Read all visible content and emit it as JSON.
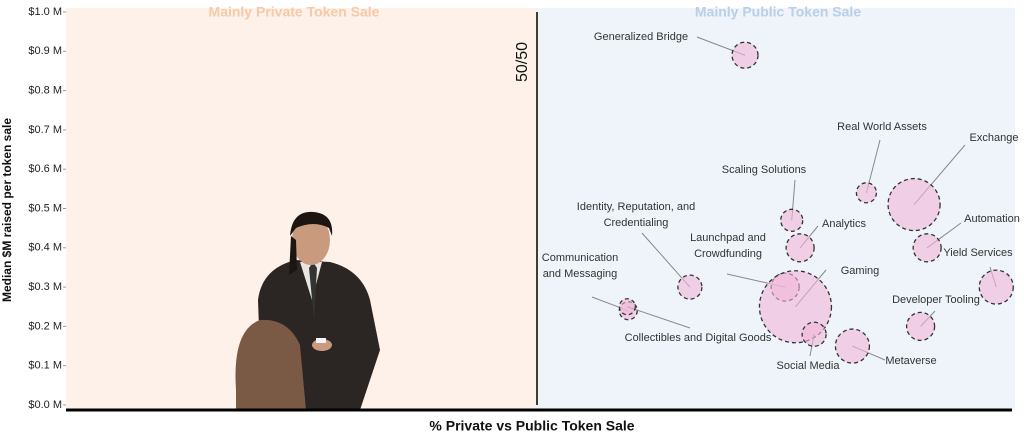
{
  "chart_data": {
    "type": "bubble",
    "region_labels": [
      "Mainly Private Token Sale",
      "Mainly Public Token Sale"
    ],
    "divider_label": "50/50",
    "xlabel": "% Private vs Public Token Sale",
    "ylabel": "Median $M raised per token sale",
    "xlim": [
      0,
      100
    ],
    "divider_x": 50,
    "ylim": [
      0,
      1
    ],
    "yticks": [
      {
        "value": 0,
        "label": "$0.0 M"
      },
      {
        "value": 0.1,
        "label": "$0.1 M"
      },
      {
        "value": 0.2,
        "label": "$0.2 M"
      },
      {
        "value": 0.3,
        "label": "$0.3 M"
      },
      {
        "value": 0.4,
        "label": "$0.4 M"
      },
      {
        "value": 0.5,
        "label": "$0.5 M"
      },
      {
        "value": 0.6,
        "label": "$0.6 M"
      },
      {
        "value": 0.7,
        "label": "$0.7 M"
      },
      {
        "value": 0.8,
        "label": "$0.8 M"
      },
      {
        "value": 0.9,
        "label": "$0.9 M"
      },
      {
        "value": 1,
        "label": "$1.0 M"
      }
    ],
    "color": "#f2b5d8",
    "labels": [
      "Generalized Bridge",
      "Real World Assets",
      "Exchange",
      "Scaling Solutions",
      "Analytics",
      "Identity, Reputation, and Credentialing",
      "Automation",
      "Yield Services",
      "Launchpad and Crowdfunding",
      "Gaming",
      "Communication and Messaging",
      "Developer Tooling",
      "Collectibles and Digital Goods",
      "Social Media",
      "Metaverse"
    ],
    "x": [
      72.7,
      85.7,
      90.8,
      77.7,
      78.6,
      66.8,
      92.2,
      99.6,
      77.0,
      78.1,
      60.2,
      91.5,
      60.1,
      80.1,
      84.2
    ],
    "values": [
      0.89,
      0.54,
      0.51,
      0.47,
      0.4,
      0.3,
      0.4,
      0.3,
      0.3,
      0.25,
      0.24,
      0.2,
      0.25,
      0.18,
      0.15
    ],
    "sizes": [
      13,
      10,
      26,
      11,
      14,
      12,
      14,
      17,
      14,
      36,
      9,
      14,
      8,
      12,
      17
    ]
  }
}
